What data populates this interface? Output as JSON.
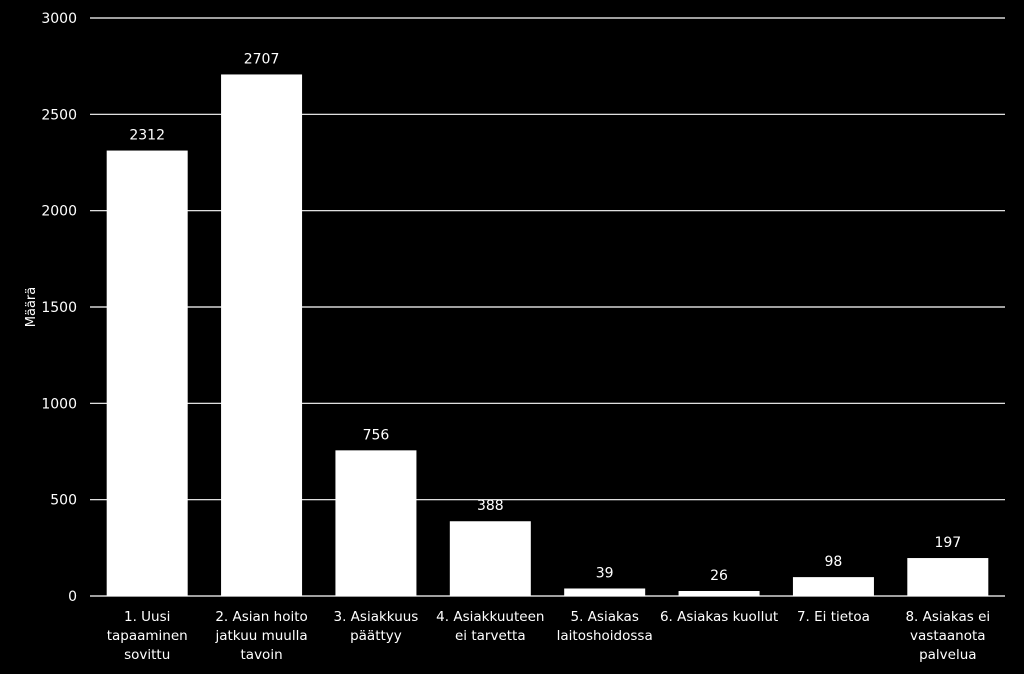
{
  "chart_data": {
    "type": "bar",
    "title": "",
    "xlabel": "",
    "ylabel": "Määrä",
    "ylim": [
      0,
      3000
    ],
    "yticks": [
      0,
      500,
      1000,
      1500,
      2000,
      2500,
      3000
    ],
    "grid": true,
    "legend": "none",
    "categories": [
      [
        "1. Uusi",
        "tapaaminen",
        "sovittu"
      ],
      [
        "2. Asian hoito",
        "jatkuu muulla",
        "tavoin"
      ],
      [
        "3. Asiakkuus",
        "päättyy"
      ],
      [
        "4. Asiakkuuteen",
        "ei tarvetta"
      ],
      [
        "5. Asiakas",
        "laitoshoidossa"
      ],
      [
        "6. Asiakas kuollut"
      ],
      [
        "7. Ei tietoa"
      ],
      [
        "8. Asiakas ei",
        "vastaanota",
        "palvelua"
      ]
    ],
    "values": [
      2312,
      2707,
      756,
      388,
      39,
      26,
      98,
      197
    ],
    "colors": {
      "background": "#000000",
      "bar": "#ffffff",
      "grid": "#ffffff",
      "text": "#ffffff"
    }
  }
}
